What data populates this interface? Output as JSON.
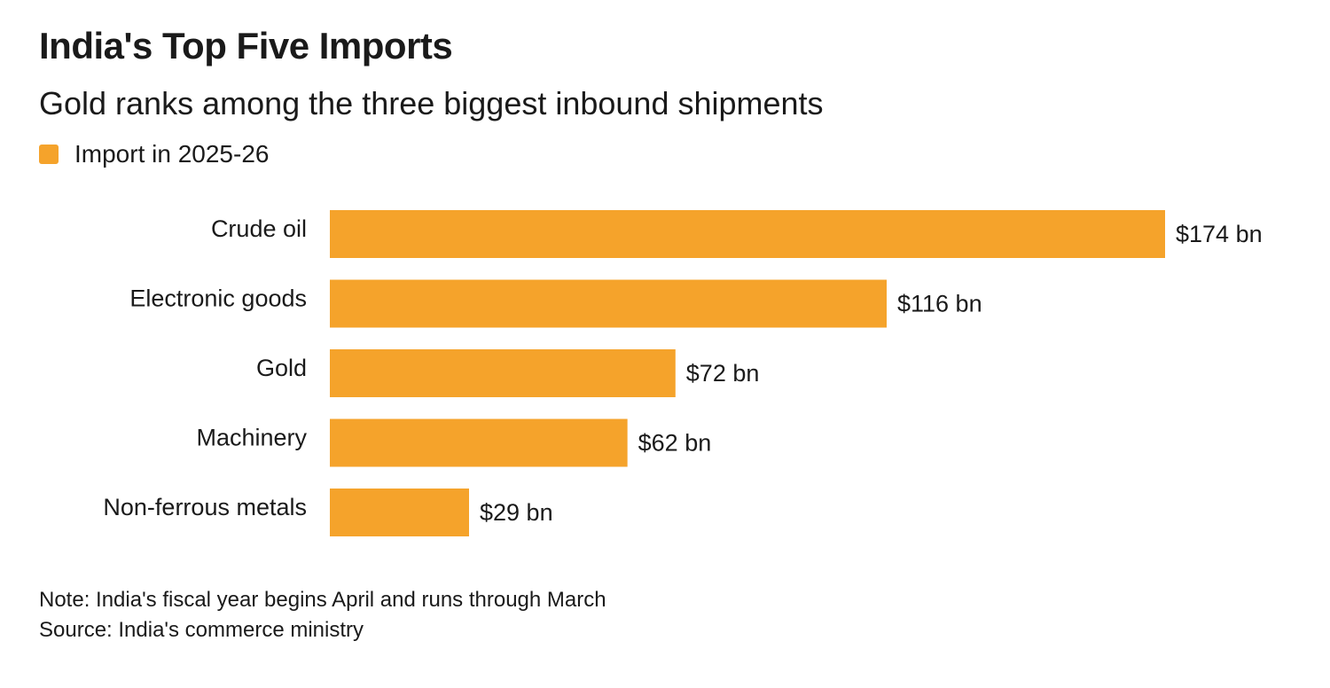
{
  "chart_data": {
    "type": "bar",
    "orientation": "horizontal",
    "title": "India's Top Five Imports",
    "subtitle": "Gold ranks among the three biggest inbound shipments",
    "categories": [
      "Crude oil",
      "Electronic goods",
      "Gold",
      "Machinery",
      "Non-ferrous metals"
    ],
    "series": [
      {
        "name": "Import in 2025-26",
        "values": [
          174,
          116,
          72,
          62,
          29
        ],
        "data_labels": [
          "$174 bn",
          "$116 bn",
          "$72 bn",
          "$62 bn",
          "$29 bn"
        ]
      }
    ],
    "xlim": [
      0,
      174
    ],
    "grid": false,
    "legend_position": "top-left",
    "bar_color": "#F5A32B"
  },
  "footer": {
    "note": "Note: India's fiscal year begins April and runs through March",
    "source": "Source: India's commerce ministry"
  }
}
